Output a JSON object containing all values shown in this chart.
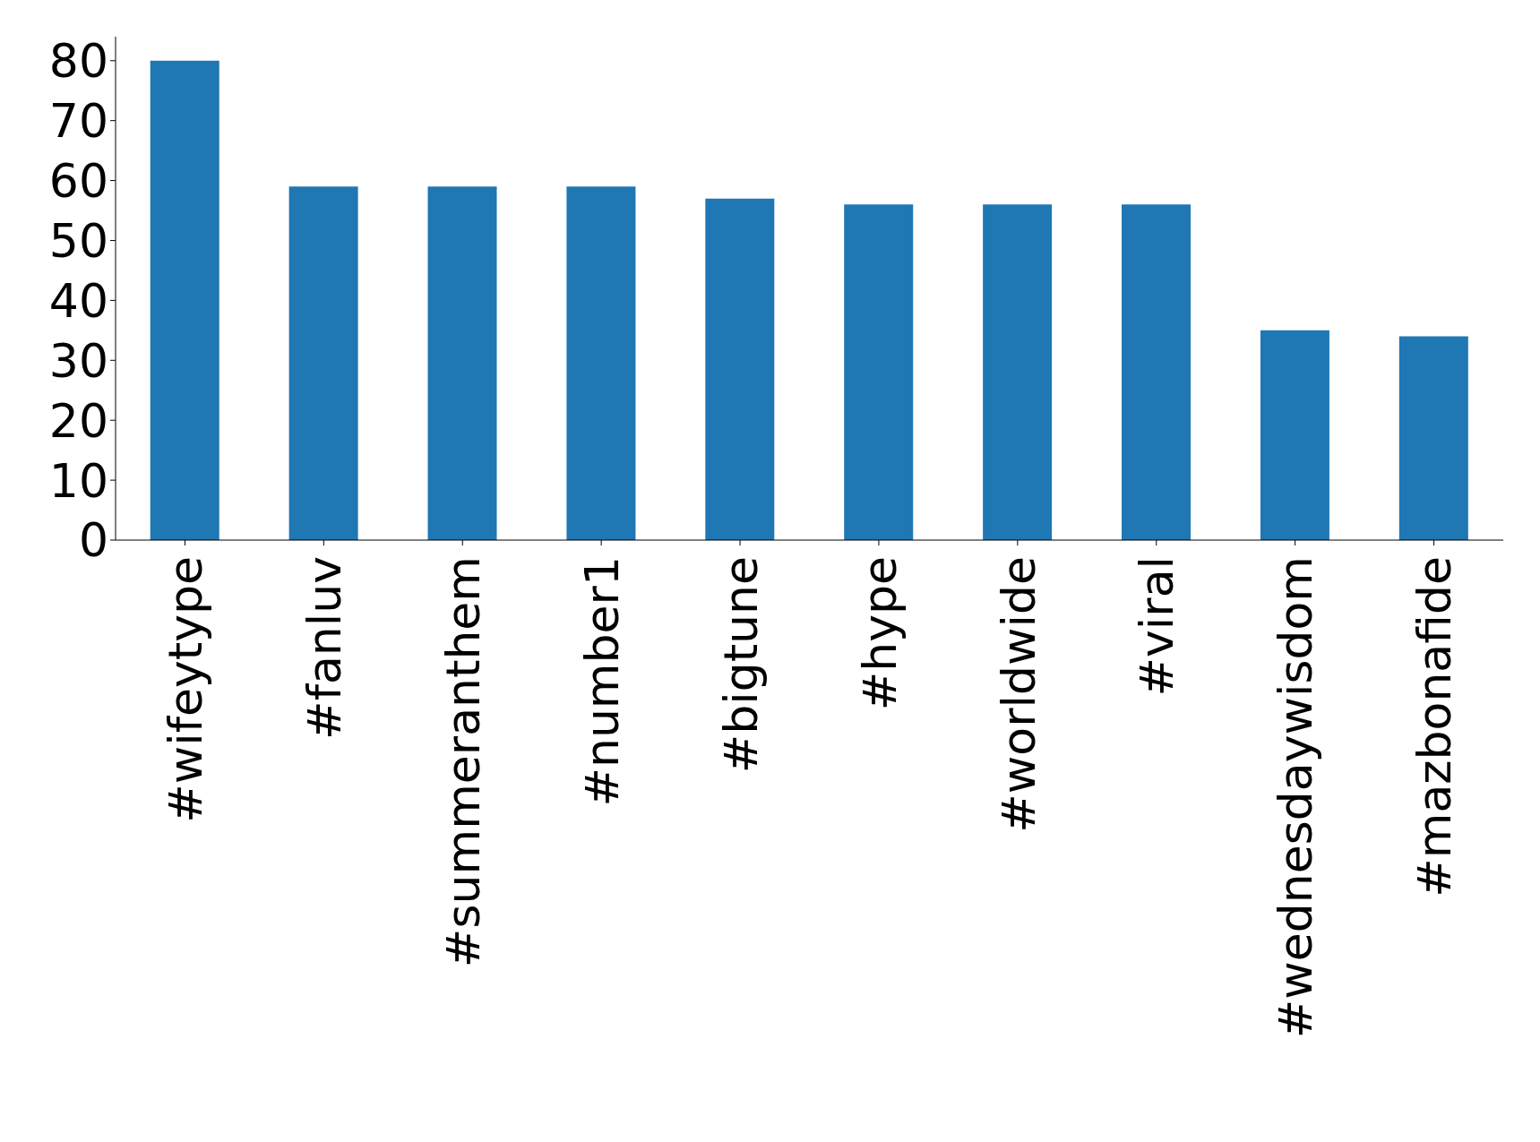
{
  "chart_data": {
    "type": "bar",
    "categories": [
      "#wifeytype",
      "#fanluv",
      "#summeranthem",
      "#number1",
      "#bigtune",
      "#hype",
      "#worldwide",
      "#viral",
      "#wednesdaywisdom",
      "#mazbonafide"
    ],
    "values": [
      80,
      59,
      59,
      59,
      57,
      56,
      56,
      56,
      35,
      34
    ],
    "color": "#1f77b4",
    "ylim": [
      0,
      84
    ],
    "yticks": [
      0,
      10,
      20,
      30,
      40,
      50,
      60,
      70,
      80
    ],
    "grid": false
  }
}
